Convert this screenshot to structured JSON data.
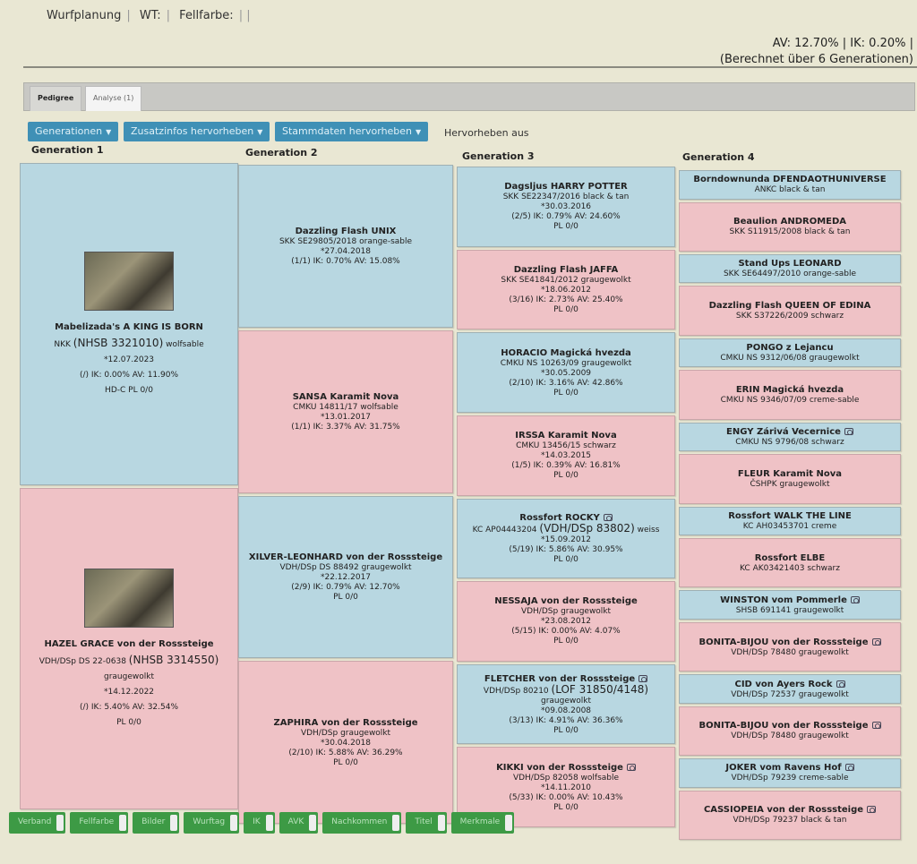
{
  "topnav": {
    "items": [
      "Wurfplanung",
      "WT:",
      "Fellfarbe:"
    ]
  },
  "summary": {
    "line1": "AV: 12.70% | IK: 0.20% |",
    "line2": "(Berechnet über 6 Generationen)"
  },
  "tabs": [
    {
      "label": "Pedigree",
      "active": true
    },
    {
      "label": "Analyse (1)",
      "active": false
    }
  ],
  "toolbar": {
    "generations": "Generationen",
    "zusatzinfos": "Zusatzinfos hervorheben",
    "stammdaten": "Stammdaten hervorheben",
    "off": "Hervorheben aus"
  },
  "colors": {
    "male": "#b8d7e1",
    "female": "#efc2c6",
    "button": "#3f90b6",
    "toggle": "#3d9a45"
  },
  "generations": [
    {
      "label": "Generation 1",
      "dogs": [
        {
          "sex": "m",
          "photo": true,
          "name": "Mabelizada's A KING IS BORN",
          "registry": "NKK",
          "registry_extra": "(NHSB 3321010)",
          "color": "wolfsable",
          "born": "*12.07.2023",
          "stats": "(/) IK: 0.00% AV: 11.90%",
          "extra": "HD-C PL 0/0"
        },
        {
          "sex": "f",
          "photo": true,
          "name": "HAZEL GRACE von der Rosssteige",
          "registry": "VDH/DSp DS 22-0638",
          "registry_extra": "(NHSB 3314550)",
          "color": "graugewolkt",
          "color_newline": true,
          "born": "*14.12.2022",
          "stats": "(/) IK: 5.40% AV: 32.54%",
          "extra": "PL 0/0"
        }
      ]
    },
    {
      "label": "Generation 2",
      "dogs": [
        {
          "sex": "m",
          "name": "Dazzling Flash UNIX",
          "registry": "SKK SE29805/2018",
          "color": "orange-sable",
          "born": "*27.04.2018",
          "stats": "(1/1) IK: 0.70% AV: 15.08%"
        },
        {
          "sex": "f",
          "name": "SANSA Karamit Nova",
          "registry": "CMKU 14811/17",
          "color": "wolfsable",
          "born": "*13.01.2017",
          "stats": "(1/1) IK: 3.37% AV: 31.75%"
        },
        {
          "sex": "m",
          "name": "XILVER-LEONHARD von der Rosssteige",
          "registry": "VDH/DSp DS 88492",
          "color": "graugewolkt",
          "born": "*22.12.2017",
          "stats": "(2/9) IK: 0.79% AV: 12.70%",
          "extra": "PL 0/0"
        },
        {
          "sex": "f",
          "name": "ZAPHIRA von der Rosssteige",
          "registry": "VDH/DSp",
          "color": "graugewolkt",
          "born": "*30.04.2018",
          "stats": "(2/10) IK: 5.88% AV: 36.29%",
          "extra": "PL 0/0"
        }
      ]
    },
    {
      "label": "Generation 3",
      "dogs": [
        {
          "sex": "m",
          "name": "Dagsljus HARRY POTTER",
          "registry": "SKK SE22347/2016",
          "color": "black & tan",
          "born": "*30.03.2016",
          "stats": "(2/5) IK: 0.79% AV: 24.60%",
          "extra": "PL 0/0"
        },
        {
          "sex": "f",
          "name": "Dazzling Flash JAFFA",
          "registry": "SKK SE41841/2012",
          "color": "graugewolkt",
          "born": "*18.06.2012",
          "stats": "(3/16) IK: 2.73% AV: 25.40%",
          "extra": "PL 0/0"
        },
        {
          "sex": "m",
          "name": "HORACIO Magická hvezda",
          "registry": "CMKU NS 10263/09",
          "color": "graugewolkt",
          "born": "*30.05.2009",
          "stats": "(2/10) IK: 3.16% AV: 42.86%",
          "extra": "PL 0/0"
        },
        {
          "sex": "f",
          "name": "IRSSA Karamit Nova",
          "registry": "CMKU 13456/15",
          "color": "schwarz",
          "born": "*14.03.2015",
          "stats": "(1/5) IK: 0.39% AV: 16.81%",
          "extra": "PL 0/0"
        },
        {
          "sex": "m",
          "camera": true,
          "name": "Rossfort ROCKY",
          "registry": "KC AP04443204",
          "registry_extra": "(VDH/DSp 83802)",
          "color": "weiss",
          "born": "*15.09.2012",
          "stats": "(5/19) IK: 5.86% AV: 30.95%",
          "extra": "PL 0/0"
        },
        {
          "sex": "f",
          "name": "NESSAJA von der Rosssteige",
          "registry": "VDH/DSp",
          "color": "graugewolkt",
          "born": "*23.08.2012",
          "stats": "(5/15) IK: 0.00% AV: 4.07%",
          "extra": "PL 0/0"
        },
        {
          "sex": "m",
          "camera": true,
          "name": "FLETCHER von der Rosssteige",
          "registry": "VDH/DSp 80210",
          "registry_extra": "(LOF 31850/4148)",
          "color": "graugewolkt",
          "color_newline": true,
          "born": "*09.08.2008",
          "stats": "(3/13) IK: 4.91% AV: 36.36%",
          "extra": "PL 0/0"
        },
        {
          "sex": "f",
          "camera": true,
          "name": "KIKKI von der Rosssteige",
          "registry": "VDH/DSp 82058",
          "color": "wolfsable",
          "born": "*14.11.2010",
          "stats": "(5/33) IK: 0.00% AV: 10.43%",
          "extra": "PL 0/0"
        }
      ]
    },
    {
      "label": "Generation 4",
      "dogs": [
        {
          "sex": "m",
          "name": "Borndownunda DFENDAOTHUNIVERSE",
          "registry": "ANKC",
          "color": "black & tan"
        },
        {
          "sex": "f",
          "name": "Beaulion ANDROMEDA",
          "registry": "SKK S11915/2008",
          "color": "black & tan"
        },
        {
          "sex": "m",
          "name": "Stand Ups LEONARD",
          "registry": "SKK SE64497/2010",
          "color": "orange-sable"
        },
        {
          "sex": "f",
          "name": "Dazzling Flash QUEEN OF EDINA",
          "registry": "SKK S37226/2009",
          "color": "schwarz"
        },
        {
          "sex": "m",
          "name": "PONGO z Lejancu",
          "registry": "CMKU NS 9312/06/08",
          "color": "graugewolkt"
        },
        {
          "sex": "f",
          "name": "ERIN Magická hvezda",
          "registry": "CMKU NS 9346/07/09",
          "color": "creme-sable"
        },
        {
          "sex": "m",
          "camera": true,
          "name": "ENGY Zárivá Vecernice",
          "registry": "CMKU NS 9796/08",
          "color": "schwarz"
        },
        {
          "sex": "f",
          "name": "FLEUR Karamit Nova",
          "registry": "ČSHPK",
          "color": "graugewolkt"
        },
        {
          "sex": "m",
          "name": "Rossfort WALK THE LINE",
          "registry": "KC AH03453701",
          "color": "creme"
        },
        {
          "sex": "f",
          "name": "Rossfort ELBE",
          "registry": "KC AK03421403",
          "color": "schwarz"
        },
        {
          "sex": "m",
          "camera": true,
          "name": "WINSTON vom Pommerle",
          "registry": "SHSB 691141",
          "color": "graugewolkt"
        },
        {
          "sex": "f",
          "camera": true,
          "name": "BONITA-BIJOU von der Rosssteige",
          "registry": "VDH/DSp 78480",
          "color": "graugewolkt"
        },
        {
          "sex": "m",
          "camera": true,
          "name": "CID von Ayers Rock",
          "registry": "VDH/DSp 72537",
          "color": "graugewolkt"
        },
        {
          "sex": "f",
          "camera": true,
          "name": "BONITA-BIJOU von der Rosssteige",
          "registry": "VDH/DSp 78480",
          "color": "graugewolkt"
        },
        {
          "sex": "m",
          "camera": true,
          "name": "JOKER vom Ravens Hof",
          "registry": "VDH/DSp 79239",
          "color": "creme-sable"
        },
        {
          "sex": "f",
          "camera": true,
          "name": "CASSIOPEIA von der Rosssteige",
          "registry": "VDH/DSp 79237",
          "color": "black & tan"
        }
      ]
    }
  ],
  "toggles": [
    "Verband",
    "Fellfarbe",
    "Bilder",
    "Wurftag",
    "IK",
    "AVK",
    "Nachkommen",
    "Titel",
    "Merkmale"
  ]
}
